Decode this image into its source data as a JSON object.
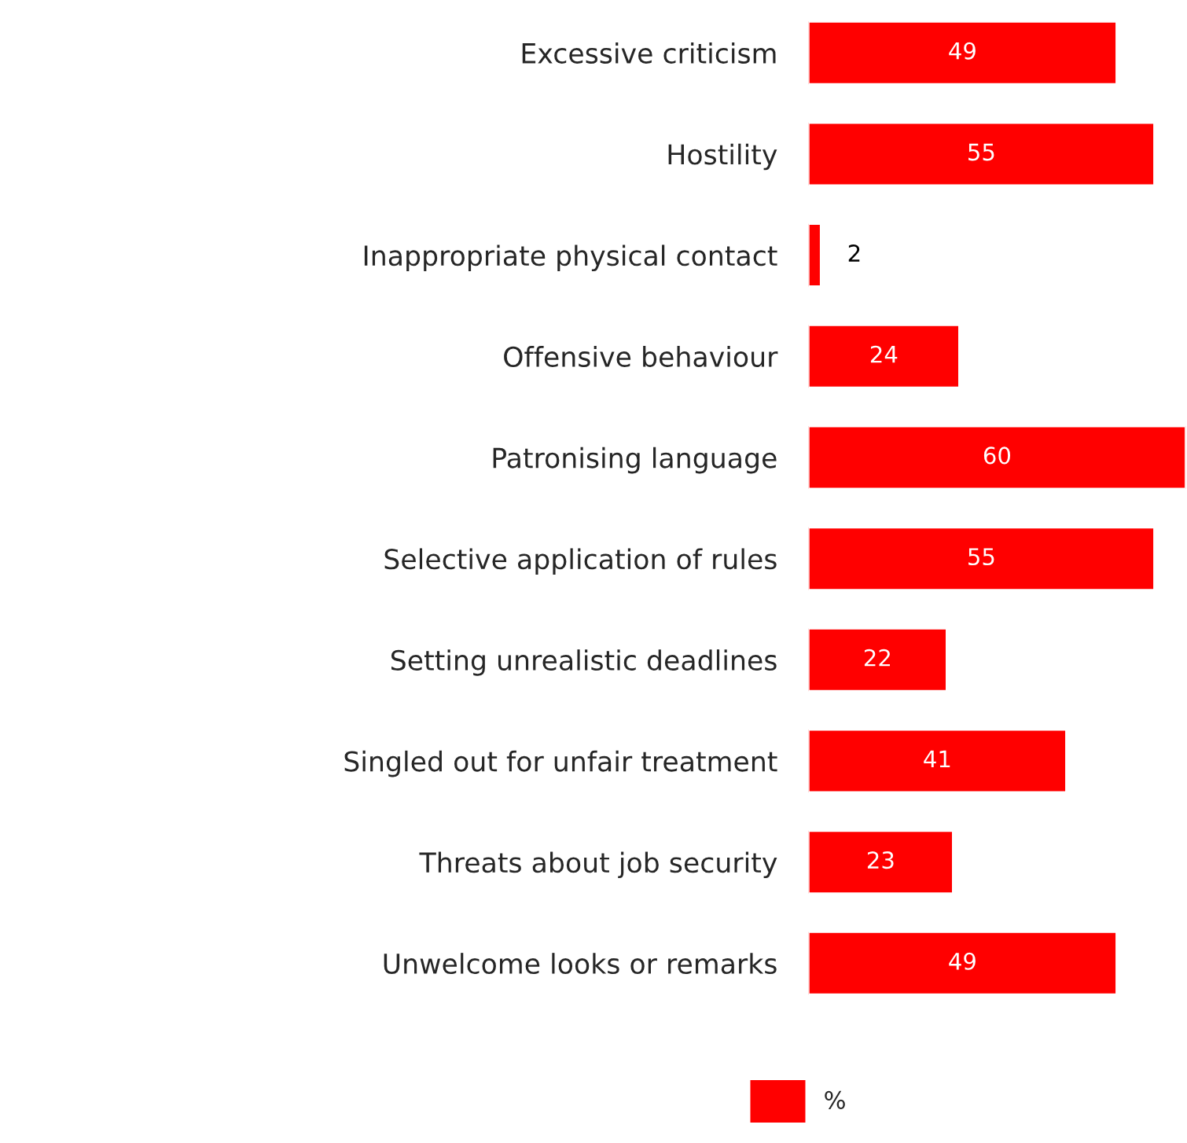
{
  "chart_data": {
    "type": "bar",
    "orientation": "horizontal",
    "tick_labels": "y",
    "categories": [
      "Excessive criticism",
      "Hostility",
      "Inappropriate physical contact",
      "Offensive behaviour",
      "Patronising language",
      "Selective application of rules",
      "Setting unrealistic deadlines",
      "Singled out for unfair treatment",
      "Threats about job security",
      "Unwelcome looks or remarks"
    ],
    "series": [
      {
        "name": "%",
        "color": "#ff0000",
        "values": [
          49,
          55,
          2,
          24,
          60,
          55,
          22,
          41,
          23,
          49
        ]
      }
    ],
    "data_labels": true,
    "legend": "bottom",
    "grid": false
  }
}
